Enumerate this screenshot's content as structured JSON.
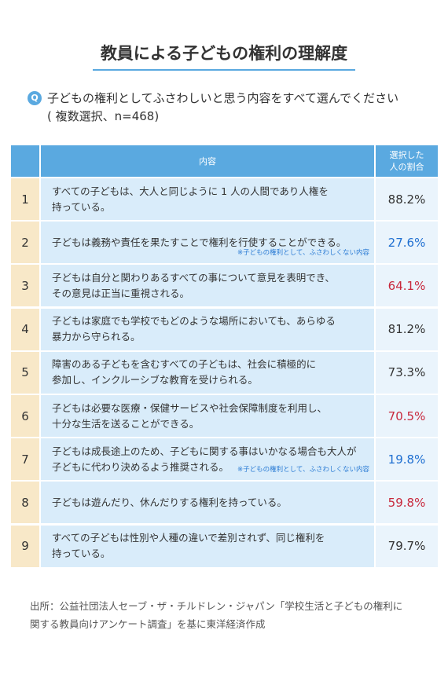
{
  "header": {
    "title": "教員による子どもの権利の理解度"
  },
  "question": {
    "label": "Q",
    "lines": [
      "子どもの権利としてふさわしいと思う内容をすべて選んでください",
      "( 複数選択、n=468)"
    ]
  },
  "table": {
    "columns": {
      "content": "内容",
      "share": [
        "選択した",
        "人の割合"
      ]
    },
    "rows": [
      {
        "number": "1",
        "text": [
          "すべての子どもは、大人と同じように 1 人の人間であり人権を",
          "持っている。"
        ],
        "value": "88.2%",
        "color": "#333333"
      },
      {
        "number": "2",
        "text": [
          "子どもは義務や責任を果たすことで権利を行使することができる。"
        ],
        "note": "※子どもの権利として、ふさわしくない内容",
        "value": "27.6%",
        "color": "#1f6fd1"
      },
      {
        "number": "3",
        "text": [
          "子どもは自分と関わりあるすべての事について意見を表明でき、",
          "その意見は正当に重視される。"
        ],
        "value": "64.1%",
        "color": "#c8283c"
      },
      {
        "number": "4",
        "text": [
          "子どもは家庭でも学校でもどのような場所においても、あらゆる",
          "暴力から守られる。"
        ],
        "value": "81.2%",
        "color": "#333333"
      },
      {
        "number": "5",
        "text": [
          "障害のある子どもを含むすべての子どもは、社会に積極的に",
          "参加し、インクルーシブな教育を受けられる。"
        ],
        "value": "73.3%",
        "color": "#333333"
      },
      {
        "number": "6",
        "text": [
          "子どもは必要な医療・保健サービスや社会保障制度を利用し、",
          "十分な生活を送ることができる。"
        ],
        "value": "70.5%",
        "color": "#c8283c"
      },
      {
        "number": "7",
        "text": [
          "子どもは成長途上のため、子どもに関する事はいかなる場合も大人が",
          "子どもに代わり決めるよう推奨される。"
        ],
        "note": "※子どもの権利として、ふさわしくない内容",
        "value": "19.8%",
        "color": "#1f6fd1"
      },
      {
        "number": "8",
        "text": [
          "子どもは遊んだり、休んだりする権利を持っている。"
        ],
        "value": "59.8%",
        "color": "#c8283c"
      },
      {
        "number": "9",
        "text": [
          "すべての子どもは性別や人種の違いで差別されず、同じ権利を",
          "持っている。"
        ],
        "value": "79.7%",
        "color": "#333333"
      }
    ]
  },
  "source": [
    "出所：公益社団法人セーブ・ザ・チルドレン・ジャパン「学校生活と子どもの権利に",
    "関する教員向けアンケート調査」を基に東洋経済作成"
  ]
}
